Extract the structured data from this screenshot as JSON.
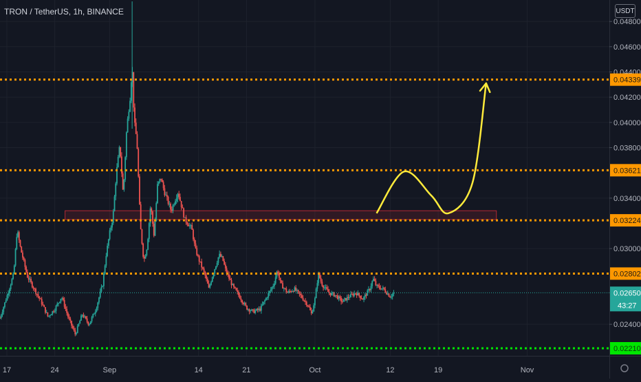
{
  "chart_data": {
    "type": "candlestick",
    "title": "TRON / TetherUS, 1h, BINANCE",
    "currency": "USDT",
    "price_ticks": [
      "0.04800",
      "0.04600",
      "0.04400",
      "0.04200",
      "0.04000",
      "0.03800",
      "0.03400",
      "0.03000",
      "0.02400"
    ],
    "price_tick_values": [
      0.048,
      0.046,
      0.044,
      0.042,
      0.04,
      0.038,
      0.034,
      0.03,
      0.024
    ],
    "time_ticks": [
      "17",
      "24",
      "Sep",
      "14",
      "21",
      "Oct",
      "12",
      "19",
      "Nov"
    ],
    "time_tick_days": [
      0,
      7,
      15,
      28,
      35,
      45,
      56,
      63,
      76
    ],
    "ylim": [
      0.0215,
      0.0497
    ],
    "xlim_days": [
      -1,
      88
    ],
    "last_price": "0.02650",
    "last_price_value": 0.0265,
    "countdown": "43:27",
    "levels": [
      {
        "label": "0.04339",
        "value": 0.04339,
        "color": "#ff9800"
      },
      {
        "label": "0.03621",
        "value": 0.03621,
        "color": "#ff9800"
      },
      {
        "label": "0.03224",
        "value": 0.03224,
        "color": "#ff9800"
      },
      {
        "label": "0.02802",
        "value": 0.02802,
        "color": "#ff9800"
      },
      {
        "label": "0.02210",
        "value": 0.0221,
        "color": "#00e600"
      }
    ],
    "zone": {
      "day_from": 8.5,
      "day_to": 71.5,
      "low": 0.0323,
      "high": 0.033,
      "color": "#b22833"
    },
    "projection": {
      "color": "#ffeb3b",
      "points": [
        [
          54,
          0.0328
        ],
        [
          58,
          0.0361
        ],
        [
          62,
          0.0342
        ],
        [
          64.5,
          0.0328
        ],
        [
          68,
          0.0352
        ],
        [
          70,
          0.0431
        ]
      ]
    },
    "series_path": [
      [
        -1,
        0.0245
      ],
      [
        0,
        0.0262
      ],
      [
        1,
        0.028
      ],
      [
        1.5,
        0.0315
      ],
      [
        2,
        0.03
      ],
      [
        3,
        0.0278
      ],
      [
        4,
        0.0268
      ],
      [
        5,
        0.0258
      ],
      [
        6,
        0.0246
      ],
      [
        7,
        0.0252
      ],
      [
        8,
        0.0262
      ],
      [
        9,
        0.0245
      ],
      [
        10,
        0.0232
      ],
      [
        11,
        0.0248
      ],
      [
        12,
        0.024
      ],
      [
        13,
        0.0252
      ],
      [
        14,
        0.0272
      ],
      [
        14.5,
        0.0295
      ],
      [
        15,
        0.0312
      ],
      [
        15.5,
        0.0325
      ],
      [
        16,
        0.036
      ],
      [
        16.5,
        0.0382
      ],
      [
        17,
        0.0342
      ],
      [
        17.5,
        0.0395
      ],
      [
        18,
        0.042
      ],
      [
        18.3,
        0.0445
      ],
      [
        18.6,
        0.0401
      ],
      [
        19,
        0.0385
      ],
      [
        19.5,
        0.0318
      ],
      [
        20,
        0.029
      ],
      [
        20.5,
        0.0302
      ],
      [
        21,
        0.0335
      ],
      [
        21.5,
        0.031
      ],
      [
        22,
        0.035
      ],
      [
        22.5,
        0.0356
      ],
      [
        23,
        0.0345
      ],
      [
        24,
        0.033
      ],
      [
        25,
        0.0345
      ],
      [
        26,
        0.0323
      ],
      [
        27,
        0.0316
      ],
      [
        27.5,
        0.03
      ],
      [
        28,
        0.0292
      ],
      [
        29,
        0.0278
      ],
      [
        29.5,
        0.0268
      ],
      [
        30,
        0.0278
      ],
      [
        31,
        0.0295
      ],
      [
        31.5,
        0.0292
      ],
      [
        32,
        0.0282
      ],
      [
        33,
        0.027
      ],
      [
        34,
        0.0262
      ],
      [
        35,
        0.0253
      ],
      [
        36,
        0.025
      ],
      [
        37,
        0.0252
      ],
      [
        38,
        0.0262
      ],
      [
        39,
        0.0272
      ],
      [
        39.5,
        0.0283
      ],
      [
        40,
        0.0272
      ],
      [
        41,
        0.0265
      ],
      [
        42,
        0.0268
      ],
      [
        43,
        0.0262
      ],
      [
        44,
        0.0255
      ],
      [
        44.5,
        0.0248
      ],
      [
        45,
        0.026
      ],
      [
        45.5,
        0.028
      ],
      [
        46,
        0.0272
      ],
      [
        47,
        0.0265
      ],
      [
        48,
        0.0263
      ],
      [
        49,
        0.0258
      ],
      [
        50,
        0.0262
      ],
      [
        51,
        0.0265
      ],
      [
        52,
        0.026
      ],
      [
        53,
        0.0268
      ],
      [
        53.5,
        0.0276
      ],
      [
        54,
        0.027
      ],
      [
        55,
        0.0268
      ],
      [
        56,
        0.0262
      ],
      [
        56.5,
        0.0265
      ]
    ]
  }
}
